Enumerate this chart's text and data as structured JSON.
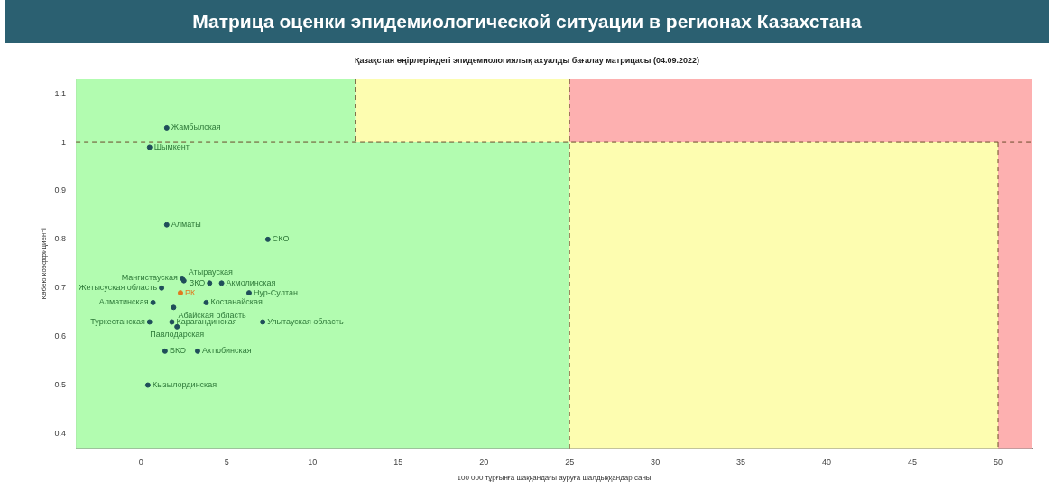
{
  "chart_data": {
    "type": "scatter",
    "title": "Матрица оценки эпидемиологической ситуации в регионах Казахстана",
    "subtitle": "Қазақстан өңірлеріндегі эпидемиологиялық ахуалды бағалау матрицасы  (04.09.2022)",
    "xlabel": "100 000 тұрғынға шаққандағы ауруға шалдыққандар саны",
    "ylabel": "Көбею коэффициенті",
    "series": [
      {
        "color": "#1f4e5a",
        "x": [
          1.5,
          0.5,
          1.5,
          7.4,
          2.4,
          2.5,
          4.0,
          4.7,
          6.3,
          1.2,
          2.3,
          0.7,
          1.9,
          3.8,
          0.5,
          1.8,
          2.1,
          7.1,
          1.4,
          3.3,
          0.4
        ],
        "values": [
          1.03,
          0.99,
          0.83,
          0.8,
          0.72,
          0.715,
          0.71,
          0.71,
          0.69,
          0.7,
          0.69,
          0.67,
          0.66,
          0.67,
          0.63,
          0.63,
          0.62,
          0.63,
          0.57,
          0.57,
          0.5
        ],
        "colors": [
          "#1f4e5a",
          "#1f4e5a",
          "#1f4e5a",
          "#1f4e5a",
          "#1f4e5a",
          "#1f4e5a",
          "#1f4e5a",
          "#1f4e5a",
          "#1f4e5a",
          "#1f4e5a",
          "#e07a1f",
          "#1f4e5a",
          "#1f4e5a",
          "#1f4e5a",
          "#1f4e5a",
          "#1f4e5a",
          "#1f4e5a",
          "#1f4e5a",
          "#1f4e5a",
          "#1f4e5a",
          "#1f4e5a"
        ]
      }
    ],
    "annotations": [
      {
        "text": "Жамбылская",
        "x": 1.5,
        "y": 1.03
      },
      {
        "text": "Шымкент",
        "x": 0.5,
        "y": 0.99
      },
      {
        "text": "Алматы",
        "x": 1.5,
        "y": 0.83
      },
      {
        "text": "СКО",
        "x": 7.4,
        "y": 0.8
      },
      {
        "text": "Мангистауская",
        "x": 2.4,
        "y": 0.72
      },
      {
        "text": "Атырауская",
        "x": 2.5,
        "y": 0.715
      },
      {
        "text": "ЗКО",
        "x": 4.0,
        "y": 0.71
      },
      {
        "text": "Акмолинская",
        "x": 4.7,
        "y": 0.71
      },
      {
        "text": "Нур-Султан",
        "x": 6.3,
        "y": 0.69
      },
      {
        "text": "Жетысуская область",
        "x": 1.2,
        "y": 0.7
      },
      {
        "text": "РК",
        "x": 2.3,
        "y": 0.69
      },
      {
        "text": "Алматинская",
        "x": 0.7,
        "y": 0.67
      },
      {
        "text": "Абайская область",
        "x": 1.9,
        "y": 0.66
      },
      {
        "text": "Костанайская",
        "x": 3.8,
        "y": 0.67
      },
      {
        "text": "Туркестанская",
        "x": 0.5,
        "y": 0.63
      },
      {
        "text": "Карагандинская",
        "x": 1.8,
        "y": 0.63
      },
      {
        "text": "Павлодарская",
        "x": 2.1,
        "y": 0.62
      },
      {
        "text": "Улытауская область",
        "x": 7.1,
        "y": 0.63
      },
      {
        "text": "ВКО",
        "x": 1.4,
        "y": 0.57
      },
      {
        "text": "Актюбинская",
        "x": 3.3,
        "y": 0.57
      },
      {
        "text": "Кызылординская",
        "x": 0.4,
        "y": 0.5
      }
    ],
    "ref_lines": [
      {
        "axis": "x",
        "value": 12.5,
        "color": "#6b4a2a",
        "line_style": "dashed"
      },
      {
        "axis": "x",
        "value": 25,
        "color": "#6b4a2a",
        "line_style": "dashed"
      },
      {
        "axis": "x",
        "value": 50,
        "color": "#6b4a2a",
        "line_style": "dashed"
      },
      {
        "axis": "y",
        "value": 1.0,
        "color": "#6b4a2a",
        "line_style": "dashed"
      }
    ],
    "bands": [
      {
        "axis": "x",
        "from": -3.8,
        "to": 12.5,
        "color": "#b2fcb0"
      },
      {
        "axis": "x",
        "from": 12.5,
        "to": 25,
        "color": "#fdfdb0"
      },
      {
        "axis": "x",
        "from": 25,
        "to": 52,
        "color": "#fdb0b0"
      },
      {
        "axis": "x",
        "from": -3.8,
        "to": 25,
        "color": "#b2fcb0"
      },
      {
        "axis": "x",
        "from": 25,
        "to": 50,
        "color": "#fdfdb0"
      },
      {
        "axis": "x",
        "from": 50,
        "to": 52,
        "color": "#fdb0b0"
      }
    ],
    "xlim": [
      -3.8,
      52
    ],
    "xticks": [
      0,
      5,
      10,
      15,
      20,
      25,
      30,
      35,
      40,
      45,
      50
    ],
    "ylim": [
      0.37,
      1.13
    ],
    "yticks": [
      0.4,
      0.5,
      0.6,
      0.7,
      0.8,
      0.9,
      1.0,
      1.1
    ],
    "marker": "circle",
    "grid": false,
    "legend": false
  }
}
